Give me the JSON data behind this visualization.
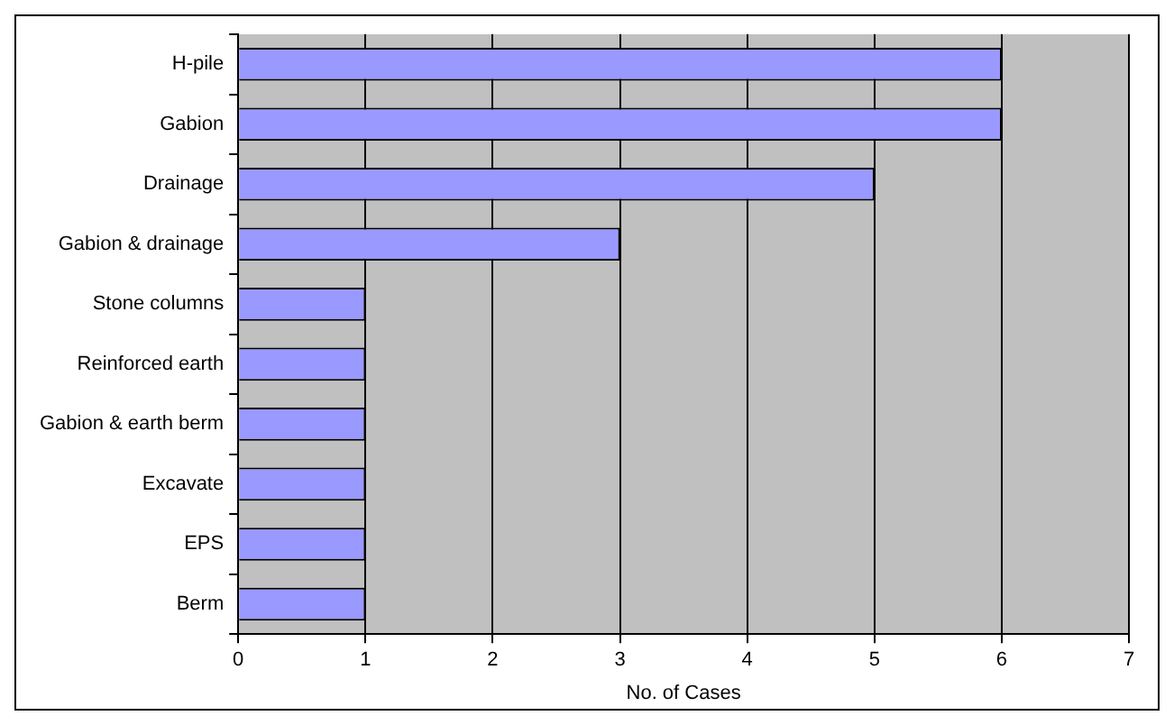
{
  "chart_data": {
    "type": "bar",
    "orientation": "horizontal",
    "xlabel": "No. of Cases",
    "categories": [
      "H-pile",
      "Gabion",
      "Drainage",
      "Gabion & drainage",
      "Stone columns",
      "Reinforced earth",
      "Gabion & earth berm",
      "Excavate",
      "EPS",
      "Berm"
    ],
    "values": [
      6,
      6,
      5,
      3,
      1,
      1,
      1,
      1,
      1,
      1
    ],
    "color": "#9999ff",
    "xlim": [
      0,
      7
    ],
    "xticks": [
      0,
      1,
      2,
      3,
      4,
      5,
      6,
      7
    ],
    "grid": "x",
    "legend": false
  }
}
